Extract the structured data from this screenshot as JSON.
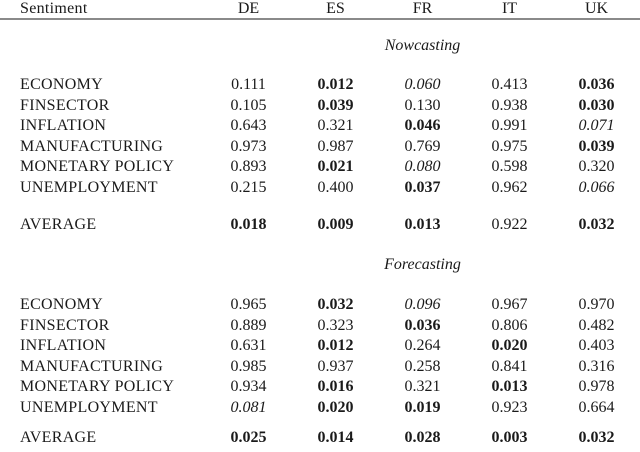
{
  "table": {
    "header_label": "Sentiment",
    "columns": [
      "DE",
      "ES",
      "FR",
      "IT",
      "UK"
    ],
    "text_color": "#1a1a1a",
    "rule_color": "#8a8a8a",
    "sections": [
      {
        "title": "Nowcasting",
        "rows": [
          {
            "label": "ECONOMY",
            "values": [
              {
                "v": "0.111",
                "style": "normal"
              },
              {
                "v": "0.012",
                "style": "bold"
              },
              {
                "v": "0.060",
                "style": "italic"
              },
              {
                "v": "0.413",
                "style": "normal"
              },
              {
                "v": "0.036",
                "style": "bold"
              }
            ]
          },
          {
            "label": "FINSECTOR",
            "values": [
              {
                "v": "0.105",
                "style": "normal"
              },
              {
                "v": "0.039",
                "style": "bold"
              },
              {
                "v": "0.130",
                "style": "normal"
              },
              {
                "v": "0.938",
                "style": "normal"
              },
              {
                "v": "0.030",
                "style": "bold"
              }
            ]
          },
          {
            "label": "INFLATION",
            "values": [
              {
                "v": "0.643",
                "style": "normal"
              },
              {
                "v": "0.321",
                "style": "normal"
              },
              {
                "v": "0.046",
                "style": "bold"
              },
              {
                "v": "0.991",
                "style": "normal"
              },
              {
                "v": "0.071",
                "style": "italic"
              }
            ]
          },
          {
            "label": "MANUFACTURING",
            "values": [
              {
                "v": "0.973",
                "style": "normal"
              },
              {
                "v": "0.987",
                "style": "normal"
              },
              {
                "v": "0.769",
                "style": "normal"
              },
              {
                "v": "0.975",
                "style": "normal"
              },
              {
                "v": "0.039",
                "style": "bold"
              }
            ]
          },
          {
            "label": "MONETARY POLICY",
            "values": [
              {
                "v": "0.893",
                "style": "normal"
              },
              {
                "v": "0.021",
                "style": "bold"
              },
              {
                "v": "0.080",
                "style": "italic"
              },
              {
                "v": "0.598",
                "style": "normal"
              },
              {
                "v": "0.320",
                "style": "normal"
              }
            ]
          },
          {
            "label": "UNEMPLOYMENT",
            "values": [
              {
                "v": "0.215",
                "style": "normal"
              },
              {
                "v": "0.400",
                "style": "normal"
              },
              {
                "v": "0.037",
                "style": "bold"
              },
              {
                "v": "0.962",
                "style": "normal"
              },
              {
                "v": "0.066",
                "style": "italic"
              }
            ]
          }
        ],
        "average_row": {
          "label": "AVERAGE",
          "values": [
            {
              "v": "0.018",
              "style": "bold"
            },
            {
              "v": "0.009",
              "style": "bold"
            },
            {
              "v": "0.013",
              "style": "bold"
            },
            {
              "v": "0.922",
              "style": "normal"
            },
            {
              "v": "0.032",
              "style": "bold"
            }
          ]
        }
      },
      {
        "title": "Forecasting",
        "rows": [
          {
            "label": "ECONOMY",
            "values": [
              {
                "v": "0.965",
                "style": "normal"
              },
              {
                "v": "0.032",
                "style": "bold"
              },
              {
                "v": "0.096",
                "style": "italic"
              },
              {
                "v": "0.967",
                "style": "normal"
              },
              {
                "v": "0.970",
                "style": "normal"
              }
            ]
          },
          {
            "label": "FINSECTOR",
            "values": [
              {
                "v": "0.889",
                "style": "normal"
              },
              {
                "v": "0.323",
                "style": "normal"
              },
              {
                "v": "0.036",
                "style": "bold"
              },
              {
                "v": "0.806",
                "style": "normal"
              },
              {
                "v": "0.482",
                "style": "normal"
              }
            ]
          },
          {
            "label": "INFLATION",
            "values": [
              {
                "v": "0.631",
                "style": "normal"
              },
              {
                "v": "0.012",
                "style": "bold"
              },
              {
                "v": "0.264",
                "style": "normal"
              },
              {
                "v": "0.020",
                "style": "bold"
              },
              {
                "v": "0.403",
                "style": "normal"
              }
            ]
          },
          {
            "label": "MANUFACTURING",
            "values": [
              {
                "v": "0.985",
                "style": "normal"
              },
              {
                "v": "0.937",
                "style": "normal"
              },
              {
                "v": "0.258",
                "style": "normal"
              },
              {
                "v": "0.841",
                "style": "normal"
              },
              {
                "v": "0.316",
                "style": "normal"
              }
            ]
          },
          {
            "label": "MONETARY POLICY",
            "values": [
              {
                "v": "0.934",
                "style": "normal"
              },
              {
                "v": "0.016",
                "style": "bold"
              },
              {
                "v": "0.321",
                "style": "normal"
              },
              {
                "v": "0.013",
                "style": "bold"
              },
              {
                "v": "0.978",
                "style": "normal"
              }
            ]
          },
          {
            "label": "UNEMPLOYMENT",
            "values": [
              {
                "v": "0.081",
                "style": "italic"
              },
              {
                "v": "0.020",
                "style": "bold"
              },
              {
                "v": "0.019",
                "style": "bold"
              },
              {
                "v": "0.923",
                "style": "normal"
              },
              {
                "v": "0.664",
                "style": "normal"
              }
            ]
          }
        ],
        "average_row": {
          "label": "AVERAGE",
          "values": [
            {
              "v": "0.025",
              "style": "bold"
            },
            {
              "v": "0.014",
              "style": "bold"
            },
            {
              "v": "0.028",
              "style": "bold"
            },
            {
              "v": "0.003",
              "style": "bold"
            },
            {
              "v": "0.032",
              "style": "bold"
            }
          ]
        }
      }
    ]
  }
}
